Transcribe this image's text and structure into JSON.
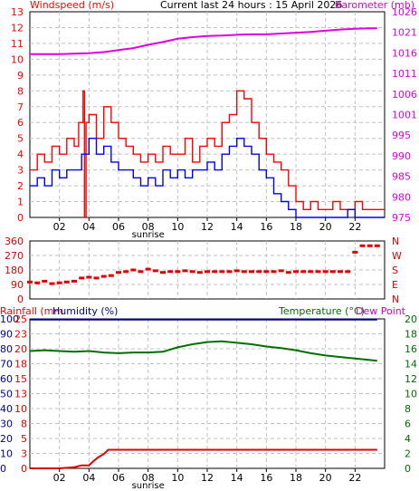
{
  "header": {
    "title": "Current last 24 hours : 15 April 2026"
  },
  "colors": {
    "wind": "#ff0000",
    "gust": "#0000ff",
    "baro": "#e000e0",
    "dir": "#e00000",
    "rain": "#e00000",
    "hum": "#0000a0",
    "temp": "#007000",
    "dew": "#cc00cc",
    "grid": "#c0c0c0",
    "axis": "#000000"
  },
  "chart_data": [
    {
      "id": "wind-baro",
      "type": "line",
      "title_left": "Windspeed (m/s)",
      "title_right": "Barometer (mb)",
      "x_ticks": [
        "02",
        "04",
        "06",
        "08",
        "10",
        "12",
        "14",
        "16",
        "18",
        "20",
        "22"
      ],
      "x_tick_hours": [
        2,
        4,
        6,
        8,
        10,
        12,
        14,
        16,
        18,
        20,
        22
      ],
      "x_range": [
        0,
        24
      ],
      "x_annotation": "sunrise",
      "x_annotation_hour": 8,
      "y_left_range": [
        0,
        13
      ],
      "y_left_ticks": [
        "0",
        "1",
        "2",
        "3",
        "4",
        "5",
        "6",
        "7",
        "8",
        "9",
        "10",
        "11",
        "12",
        "13"
      ],
      "y_right_range": [
        975,
        1026
      ],
      "y_right_ticks": [
        "975",
        "980",
        "985",
        "990",
        "995",
        "1001",
        "1006",
        "1011",
        "1016",
        "1021",
        "1026"
      ],
      "series": [
        {
          "key": "wind",
          "x": [
            0,
            0.5,
            1,
            1.5,
            2,
            2.5,
            3,
            3.3,
            3.6,
            3.7,
            3.8,
            4,
            4.5,
            5,
            5.5,
            6,
            6.5,
            7,
            7.5,
            8,
            8.5,
            9,
            9.5,
            10,
            10.5,
            11,
            11.5,
            12,
            12.5,
            13,
            13.5,
            14,
            14.5,
            15,
            15.5,
            16,
            16.5,
            17,
            17.5,
            18,
            18.5,
            19,
            19.5,
            20,
            20.5,
            21,
            21.5,
            22,
            22.5,
            23,
            23.5
          ],
          "y": [
            3,
            4,
            3.5,
            4.5,
            4,
            5,
            4.5,
            6,
            8,
            0,
            6,
            6.5,
            5,
            7,
            6,
            5,
            4.5,
            4,
            3.5,
            4,
            3.5,
            4.5,
            4,
            4,
            5,
            3.5,
            4.5,
            5,
            4.5,
            6,
            6.5,
            8,
            7.5,
            6,
            5,
            4,
            3.5,
            3,
            2,
            1,
            0.5,
            1,
            0.5,
            0.5,
            1,
            0.5,
            0.5,
            1,
            0.5,
            0.5,
            0.5
          ]
        },
        {
          "key": "gust",
          "x": [
            0,
            0.5,
            1,
            1.5,
            2,
            2.5,
            3,
            3.5,
            4,
            4.5,
            5,
            5.5,
            6,
            6.5,
            7,
            7.5,
            8,
            8.5,
            9,
            9.5,
            10,
            10.5,
            11,
            11.5,
            12,
            12.5,
            13,
            13.5,
            14,
            14.5,
            15,
            15.5,
            16,
            16.5,
            17,
            17.5,
            18,
            18.5,
            19,
            19.5,
            20,
            20.5,
            21,
            21.5,
            22,
            22.5,
            23,
            23.5
          ],
          "y": [
            2,
            2.5,
            2,
            3,
            2.5,
            3,
            3,
            4,
            5,
            4,
            4.5,
            3.5,
            3,
            3,
            2.5,
            2,
            2.5,
            2,
            3,
            2.5,
            3,
            2.5,
            3,
            3,
            3.5,
            3,
            4,
            4.5,
            5,
            4.5,
            4,
            3,
            2.5,
            1.5,
            1,
            0.5,
            0,
            0,
            0,
            0,
            0,
            0,
            0,
            0.5,
            0,
            0,
            0,
            0
          ]
        },
        {
          "key": "baro",
          "x": [
            0,
            2,
            4,
            5,
            6,
            7,
            8,
            9,
            10,
            11,
            12,
            13,
            14,
            15,
            16,
            17,
            18,
            19,
            20,
            21,
            22,
            23,
            23.5
          ],
          "y": [
            1015.5,
            1015.5,
            1015.7,
            1016,
            1016.5,
            1017,
            1017.8,
            1018.5,
            1019.3,
            1019.7,
            1020,
            1020.1,
            1020.3,
            1020.4,
            1020.4,
            1020.6,
            1020.8,
            1021,
            1021.3,
            1021.6,
            1021.8,
            1021.9,
            1021.9
          ]
        }
      ]
    },
    {
      "id": "direction",
      "type": "scatter",
      "y_left_range": [
        0,
        360
      ],
      "y_left_ticks": [
        "0",
        "90",
        "180",
        "270",
        "360"
      ],
      "y_right_ticks": [
        "N",
        "E",
        "S",
        "W",
        "N"
      ],
      "series": [
        {
          "key": "dir",
          "x": [
            0,
            0.5,
            1,
            1.5,
            2,
            2.5,
            3,
            3.5,
            4,
            4.5,
            5,
            5.5,
            6,
            6.5,
            7,
            7.5,
            8,
            8.5,
            9,
            9.5,
            10,
            10.5,
            11,
            11.5,
            12,
            12.5,
            13,
            13.5,
            14,
            14.5,
            15,
            15.5,
            16,
            16.5,
            17,
            17.5,
            18,
            18.5,
            19,
            19.5,
            20,
            20.5,
            21,
            21.5,
            22,
            22.5,
            23,
            23.5
          ],
          "y": [
            105,
            100,
            110,
            95,
            100,
            105,
            110,
            130,
            135,
            130,
            140,
            145,
            165,
            170,
            180,
            170,
            185,
            175,
            165,
            170,
            170,
            175,
            170,
            165,
            170,
            170,
            170,
            170,
            175,
            170,
            170,
            170,
            170,
            170,
            175,
            165,
            170,
            170,
            170,
            170,
            170,
            170,
            170,
            170,
            290,
            330,
            330,
            330
          ]
        }
      ]
    },
    {
      "id": "rain-hum-temp",
      "type": "line",
      "title_left": "Rainfall (mm",
      "title_center": "Humidity (%)",
      "title_right": "Temperature (°C)",
      "title_right2": "Dew Point",
      "x_ticks": [
        "02",
        "04",
        "06",
        "08",
        "10",
        "12",
        "14",
        "16",
        "18",
        "20",
        "22"
      ],
      "x_tick_hours": [
        2,
        4,
        6,
        8,
        10,
        12,
        14,
        16,
        18,
        20,
        22
      ],
      "x_annotation": "sunrise",
      "x_annotation_hour": 8,
      "y_hum_ticks": [
        "0",
        "10",
        "20",
        "30",
        "40",
        "50",
        "60",
        "70",
        "80",
        "90",
        "100"
      ],
      "y_rain_ticks": [
        "0",
        "3",
        "5",
        "8",
        "10",
        "13",
        "15",
        "18",
        "20",
        "23",
        "25"
      ],
      "y_rain_range": [
        0,
        25
      ],
      "y_temp_range": [
        0,
        20
      ],
      "y_temp_ticks": [
        "0",
        "2",
        "4",
        "6",
        "8",
        "10",
        "12",
        "14",
        "16",
        "18",
        "20"
      ],
      "series": [
        {
          "key": "hum",
          "x": [
            0,
            23.5
          ],
          "y": [
            100,
            100
          ]
        },
        {
          "key": "temp",
          "x": [
            0,
            1,
            2,
            3,
            4,
            5,
            6,
            7,
            8,
            9,
            10,
            11,
            12,
            13,
            14,
            15,
            16,
            17,
            18,
            19,
            20,
            21,
            22,
            23,
            23.5
          ],
          "y": [
            15.7,
            15.8,
            15.7,
            15.6,
            15.7,
            15.5,
            15.4,
            15.5,
            15.5,
            15.6,
            16.2,
            16.6,
            16.9,
            17,
            16.8,
            16.6,
            16.3,
            16.1,
            15.8,
            15.4,
            15.1,
            14.9,
            14.7,
            14.5,
            14.4
          ]
        },
        {
          "key": "rain",
          "x": [
            0,
            2,
            3,
            3.5,
            4,
            4.3,
            4.6,
            5,
            5.3,
            6,
            8,
            12,
            16,
            20,
            23.5
          ],
          "y": [
            0,
            0,
            0.2,
            0.5,
            0.5,
            1.2,
            1.8,
            2.4,
            3.1,
            3.1,
            3.1,
            3.1,
            3.1,
            3.1,
            3.1
          ]
        }
      ]
    }
  ]
}
